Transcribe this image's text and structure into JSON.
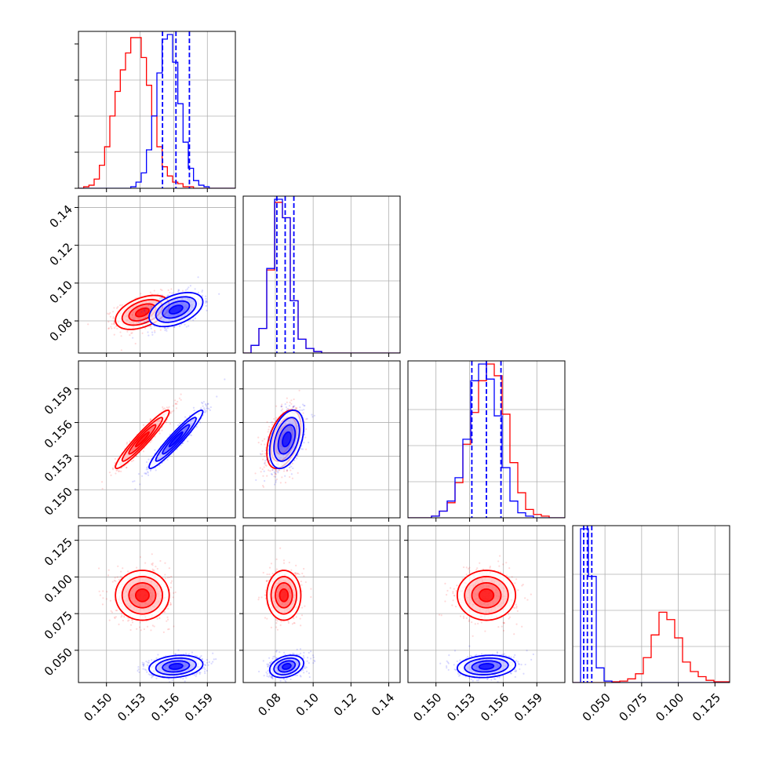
{
  "colors": {
    "red": "#ff0000",
    "blue": "#0000ff",
    "grid": "#b0b0b0",
    "axis": "#000000"
  },
  "chart_data": {
    "type": "corner",
    "grid": true,
    "legend": "none",
    "parameters": [
      {
        "range": [
          0.1475,
          0.1615
        ],
        "ticks": [
          "0.150",
          "0.153",
          "0.156",
          "0.159"
        ],
        "tick_values": [
          0.15,
          0.153,
          0.156,
          0.159
        ]
      },
      {
        "range": [
          0.063,
          0.146
        ],
        "ticks": [
          "0.08",
          "0.10",
          "0.12",
          "0.14"
        ],
        "tick_values": [
          0.08,
          0.1,
          0.12,
          0.14
        ]
      },
      {
        "range": [
          0.1475,
          0.1615
        ],
        "ticks": [
          "0.150",
          "0.153",
          "0.156",
          "0.159"
        ],
        "tick_values": [
          0.15,
          0.153,
          0.156,
          0.159
        ]
      },
      {
        "range": [
          0.028,
          0.135
        ],
        "ticks": [
          "0.050",
          "0.075",
          "0.100",
          "0.125"
        ],
        "tick_values": [
          0.05,
          0.075,
          0.1,
          0.125
        ]
      }
    ],
    "series": [
      {
        "color": "red",
        "means": [
          0.1532,
          0.0845,
          0.1545,
          0.0875
        ],
        "sigmas": [
          0.0012,
          0.0045,
          0.0013,
          0.0085
        ],
        "correlations": {
          "1-0": 0.45,
          "2-0": 0.95,
          "2-1": 0.45,
          "3-0": 0.0,
          "3-1": 0.0,
          "3-2": 0.0
        },
        "histograms": [
          {
            "edges": [
              0.1475,
              0.1615
            ],
            "counts": [
              0,
              1,
              2,
              6,
              15,
              27,
              47,
              63,
              77,
              88,
              98,
              98,
              85,
              67,
              47,
              27,
              14,
              8,
              4,
              3,
              1,
              1,
              0,
              0,
              0,
              0,
              0,
              0,
              0,
              0
            ]
          },
          {
            "edges": [
              0.063,
              0.146
            ],
            "counts": [
              0,
              5,
              16,
              54,
              98,
              88,
              34,
              9,
              3,
              1,
              0,
              0,
              0,
              0,
              0,
              0,
              0,
              0,
              0,
              0
            ]
          },
          {
            "edges": [
              0.1475,
              0.1615
            ],
            "counts": [
              0,
              0,
              0,
              1,
              4,
              9,
              21,
              44,
              63,
              82,
              92,
              85,
              62,
              33,
              15,
              5,
              2,
              1,
              0,
              0
            ]
          },
          {
            "edges": [
              0.028,
              0.135
            ],
            "counts": [
              0,
              0,
              0,
              0,
              0,
              1,
              2,
              5,
              12,
              34,
              65,
              96,
              86,
              61,
              28,
              15,
              8,
              3,
              1,
              1
            ]
          }
        ]
      },
      {
        "color": "blue",
        "means": [
          0.1562,
          0.086,
          0.1545,
          0.039
        ],
        "sigmas": [
          0.0012,
          0.0045,
          0.0013,
          0.0038
        ],
        "correlations": {
          "1-0": 0.45,
          "2-0": 0.95,
          "2-1": 0.4,
          "3-0": 0.2,
          "3-1": 0.3,
          "3-2": 0.15
        },
        "quantile_lines": [
          [
            0.155,
            0.1562,
            0.1574
          ],
          [
            0.0808,
            0.0852,
            0.0898
          ],
          [
            0.1532,
            0.1545,
            0.1558
          ],
          [
            0.0355,
            0.038,
            0.041
          ]
        ],
        "histograms": [
          {
            "edges": [
              0.1475,
              0.1615
            ],
            "counts": [
              0,
              0,
              0,
              0,
              0,
              0,
              0,
              0,
              0,
              0,
              1,
              4,
              10,
              25,
              47,
              75,
              97,
              100,
              82,
              55,
              30,
              13,
              5,
              2,
              1,
              0,
              0,
              0,
              0,
              0
            ]
          },
          {
            "edges": [
              0.063,
              0.146
            ],
            "counts": [
              0,
              5,
              16,
              55,
              100,
              88,
              34,
              9,
              3,
              1,
              0,
              0,
              0,
              0,
              0,
              0,
              0,
              0,
              0,
              0
            ]
          },
          {
            "edges": [
              0.1475,
              0.1615
            ],
            "counts": [
              0,
              0,
              0,
              1,
              4,
              10,
              24,
              47,
              82,
              92,
              83,
              61,
              30,
              10,
              3,
              1,
              0,
              0,
              0,
              0
            ]
          },
          {
            "edges": [
              0.028,
              0.135
            ],
            "counts": [
              0,
              210,
              145,
              20,
              2,
              0,
              0,
              0,
              0,
              0,
              0,
              0,
              0,
              0,
              0,
              0,
              0,
              0,
              0,
              0
            ]
          }
        ]
      }
    ]
  }
}
